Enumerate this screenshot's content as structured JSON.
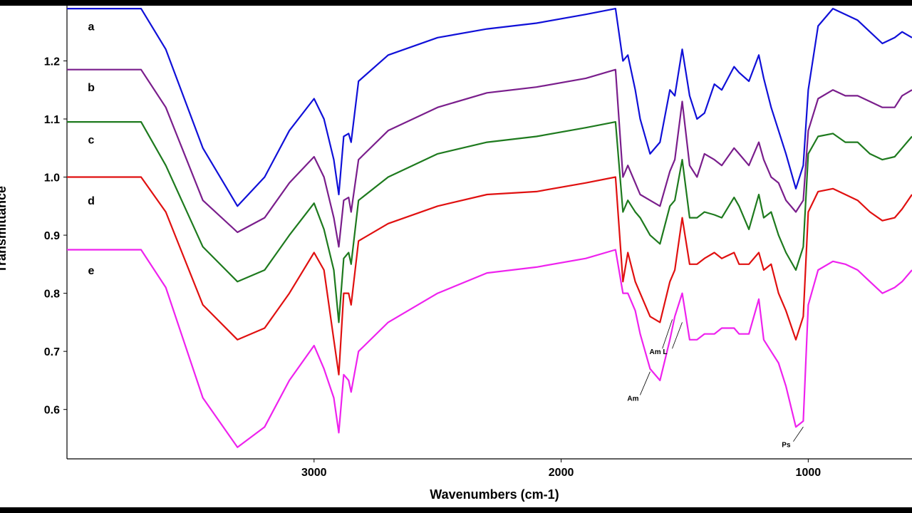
{
  "chart_data": {
    "type": "line",
    "title": "",
    "xlabel": "Wavenumbers (cm-1)",
    "ylabel": "Transmittance",
    "x_reversed": true,
    "xlim": [
      4000,
      580
    ],
    "ylim": [
      0.515,
      1.295
    ],
    "x_ticks": [
      3000,
      2000,
      1000
    ],
    "y_ticks": [
      0.6,
      0.7,
      0.8,
      0.9,
      1.0,
      1.1,
      1.2
    ],
    "y_tick_labels": [
      "0.6",
      "0.7",
      "0.8",
      "0.9",
      "1.0",
      "1.1",
      "1.2"
    ],
    "x_tick_labels": [
      "3000",
      "2000",
      "1000"
    ],
    "grid": false,
    "colors": {
      "a": "#1010d8",
      "b": "#7a1e8c",
      "c": "#1e7a1e",
      "d": "#e01010",
      "e": "#ee22ee"
    },
    "series": [
      {
        "name": "a",
        "x": [
          4000,
          3700,
          3600,
          3450,
          3310,
          3200,
          3100,
          3000,
          2960,
          2920,
          2900,
          2880,
          2860,
          2850,
          2820,
          2700,
          2500,
          2300,
          2100,
          1900,
          1780,
          1750,
          1730,
          1700,
          1680,
          1640,
          1600,
          1560,
          1540,
          1510,
          1480,
          1450,
          1420,
          1380,
          1350,
          1300,
          1280,
          1240,
          1200,
          1180,
          1150,
          1120,
          1090,
          1050,
          1020,
          1000,
          960,
          900,
          850,
          800,
          750,
          700,
          650,
          620,
          580
        ],
        "y": [
          1.29,
          1.29,
          1.22,
          1.05,
          0.95,
          1.0,
          1.08,
          1.135,
          1.1,
          1.03,
          0.97,
          1.07,
          1.075,
          1.06,
          1.165,
          1.21,
          1.24,
          1.255,
          1.265,
          1.28,
          1.29,
          1.2,
          1.21,
          1.15,
          1.1,
          1.04,
          1.06,
          1.15,
          1.14,
          1.22,
          1.14,
          1.1,
          1.11,
          1.16,
          1.15,
          1.19,
          1.18,
          1.165,
          1.21,
          1.17,
          1.12,
          1.08,
          1.04,
          0.98,
          1.02,
          1.15,
          1.26,
          1.29,
          1.28,
          1.27,
          1.25,
          1.23,
          1.24,
          1.25,
          1.24
        ]
      },
      {
        "name": "b",
        "x": [
          4000,
          3700,
          3600,
          3450,
          3310,
          3200,
          3100,
          3000,
          2960,
          2920,
          2900,
          2880,
          2860,
          2850,
          2820,
          2700,
          2500,
          2300,
          2100,
          1900,
          1780,
          1750,
          1730,
          1700,
          1680,
          1640,
          1600,
          1560,
          1540,
          1510,
          1480,
          1450,
          1420,
          1380,
          1350,
          1300,
          1280,
          1240,
          1200,
          1180,
          1150,
          1120,
          1090,
          1050,
          1020,
          1000,
          960,
          900,
          850,
          800,
          750,
          700,
          650,
          620,
          580
        ],
        "y": [
          1.185,
          1.185,
          1.12,
          0.96,
          0.905,
          0.93,
          0.99,
          1.035,
          1.0,
          0.93,
          0.88,
          0.96,
          0.965,
          0.94,
          1.03,
          1.08,
          1.12,
          1.145,
          1.155,
          1.17,
          1.185,
          1.0,
          1.02,
          0.99,
          0.97,
          0.96,
          0.95,
          1.01,
          1.03,
          1.13,
          1.02,
          1.0,
          1.04,
          1.03,
          1.02,
          1.05,
          1.04,
          1.02,
          1.06,
          1.03,
          1.0,
          0.99,
          0.96,
          0.94,
          0.96,
          1.08,
          1.135,
          1.15,
          1.14,
          1.14,
          1.13,
          1.12,
          1.12,
          1.14,
          1.15
        ]
      },
      {
        "name": "c",
        "x": [
          4000,
          3700,
          3600,
          3450,
          3310,
          3200,
          3100,
          3000,
          2960,
          2920,
          2900,
          2880,
          2860,
          2850,
          2820,
          2700,
          2500,
          2300,
          2100,
          1900,
          1780,
          1750,
          1730,
          1700,
          1680,
          1640,
          1600,
          1560,
          1540,
          1510,
          1480,
          1450,
          1420,
          1380,
          1350,
          1300,
          1280,
          1240,
          1200,
          1180,
          1150,
          1120,
          1090,
          1050,
          1020,
          1000,
          960,
          900,
          850,
          800,
          750,
          700,
          650,
          620,
          580
        ],
        "y": [
          1.095,
          1.095,
          1.02,
          0.88,
          0.82,
          0.84,
          0.9,
          0.955,
          0.91,
          0.84,
          0.75,
          0.86,
          0.87,
          0.85,
          0.96,
          1.0,
          1.04,
          1.06,
          1.07,
          1.085,
          1.095,
          0.94,
          0.96,
          0.94,
          0.93,
          0.9,
          0.885,
          0.95,
          0.96,
          1.03,
          0.93,
          0.93,
          0.94,
          0.935,
          0.93,
          0.965,
          0.95,
          0.91,
          0.97,
          0.93,
          0.94,
          0.9,
          0.87,
          0.84,
          0.88,
          1.04,
          1.07,
          1.075,
          1.06,
          1.06,
          1.04,
          1.03,
          1.035,
          1.05,
          1.07
        ]
      },
      {
        "name": "d",
        "x": [
          4000,
          3700,
          3600,
          3450,
          3310,
          3200,
          3100,
          3000,
          2960,
          2920,
          2900,
          2880,
          2860,
          2850,
          2820,
          2700,
          2500,
          2300,
          2100,
          1900,
          1780,
          1750,
          1730,
          1700,
          1680,
          1640,
          1600,
          1560,
          1540,
          1510,
          1480,
          1450,
          1420,
          1380,
          1350,
          1300,
          1280,
          1240,
          1200,
          1180,
          1150,
          1120,
          1090,
          1050,
          1020,
          1000,
          960,
          900,
          850,
          800,
          750,
          700,
          650,
          620,
          580
        ],
        "y": [
          1.0,
          1.0,
          0.94,
          0.78,
          0.72,
          0.74,
          0.8,
          0.87,
          0.84,
          0.72,
          0.66,
          0.8,
          0.8,
          0.78,
          0.89,
          0.92,
          0.95,
          0.97,
          0.975,
          0.99,
          1.0,
          0.82,
          0.87,
          0.82,
          0.8,
          0.76,
          0.75,
          0.82,
          0.84,
          0.93,
          0.85,
          0.85,
          0.86,
          0.87,
          0.86,
          0.87,
          0.85,
          0.85,
          0.87,
          0.84,
          0.85,
          0.8,
          0.77,
          0.72,
          0.76,
          0.94,
          0.975,
          0.98,
          0.97,
          0.96,
          0.94,
          0.925,
          0.93,
          0.945,
          0.97
        ]
      },
      {
        "name": "e",
        "x": [
          4000,
          3700,
          3600,
          3450,
          3310,
          3200,
          3100,
          3000,
          2960,
          2920,
          2900,
          2880,
          2860,
          2850,
          2820,
          2700,
          2500,
          2300,
          2100,
          1900,
          1780,
          1750,
          1730,
          1700,
          1680,
          1640,
          1600,
          1560,
          1540,
          1510,
          1480,
          1450,
          1420,
          1380,
          1350,
          1300,
          1280,
          1240,
          1200,
          1180,
          1150,
          1120,
          1090,
          1050,
          1020,
          1000,
          960,
          900,
          850,
          800,
          750,
          700,
          650,
          620,
          580
        ],
        "y": [
          0.875,
          0.875,
          0.81,
          0.62,
          0.535,
          0.57,
          0.65,
          0.71,
          0.67,
          0.62,
          0.56,
          0.66,
          0.65,
          0.63,
          0.7,
          0.75,
          0.8,
          0.835,
          0.845,
          0.86,
          0.875,
          0.8,
          0.8,
          0.77,
          0.73,
          0.67,
          0.65,
          0.72,
          0.76,
          0.8,
          0.72,
          0.72,
          0.73,
          0.73,
          0.74,
          0.74,
          0.73,
          0.73,
          0.79,
          0.72,
          0.7,
          0.68,
          0.64,
          0.57,
          0.58,
          0.78,
          0.84,
          0.855,
          0.85,
          0.84,
          0.82,
          0.8,
          0.81,
          0.82,
          0.84
        ]
      }
    ],
    "series_labels": [
      {
        "text": "a",
        "series": "a",
        "y": 1.26
      },
      {
        "text": "b",
        "series": "b",
        "y": 1.155
      },
      {
        "text": "c",
        "series": "c",
        "y": 1.065
      },
      {
        "text": "d",
        "series": "d",
        "y": 0.96
      },
      {
        "text": "e",
        "series": "e",
        "y": 0.84
      }
    ],
    "annotations": [
      {
        "text": "Am",
        "x": 1640,
        "y": 0.665,
        "text_y": 0.615
      },
      {
        "text": "Am",
        "x": 1550,
        "y": 0.755,
        "text_y": 0.695
      },
      {
        "text": "L",
        "x": 1510,
        "y": 0.75,
        "text_y": 0.695
      },
      {
        "text": "Ps",
        "x": 1020,
        "y": 0.57,
        "text_y": 0.535
      }
    ]
  }
}
